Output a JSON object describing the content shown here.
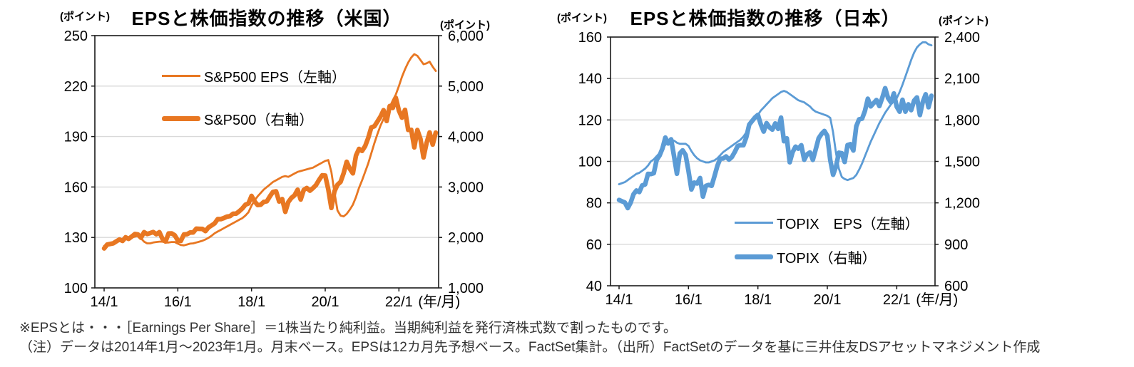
{
  "page": {
    "background": "#FFFFFF",
    "axis_color": "#1A1A1A",
    "grid_color": "#D9D9D9"
  },
  "footnotes": {
    "line1": "※EPSとは・・・［Earnings Per Share］＝1株当たり純利益。当期純利益を発行済株式数で割ったものです。",
    "line2": "（注）データは2014年1月～2023年1月。月末ベース。EPSは12カ月先予想ベース。FactSet集計。（出所）FactSetのデータを基に三井住友DSアセットマネジメント作成"
  },
  "chart_data": [
    {
      "type": "line",
      "title": "EPSと株価指数の推移（米国）",
      "x_axis": {
        "unit": "(年/月)",
        "tick_labels": [
          "14/1",
          "16/1",
          "18/1",
          "20/1",
          "22/1"
        ],
        "tick_month_indices": [
          0,
          24,
          48,
          72,
          96
        ],
        "start": "2014/1",
        "end": "2023/1",
        "interval": "monthly",
        "points": 109
      },
      "left_axis": {
        "unit": "(ポイント)",
        "min": 100,
        "max": 250,
        "step": 30,
        "tick_labels": [
          "100",
          "130",
          "160",
          "190",
          "220",
          "250"
        ]
      },
      "right_axis": {
        "unit": "(ポイント)",
        "min": 1000,
        "max": 6000,
        "step": 1000,
        "tick_labels": [
          "1,000",
          "2,000",
          "3,000",
          "4,000",
          "5,000",
          "6,000"
        ]
      },
      "grid": true,
      "legend_position": "inside-top-left",
      "series": [
        {
          "name": "S&P500 EPS（左軸）",
          "axis": "left",
          "line": "thin",
          "color": "#E87722",
          "values": [
            125,
            125.8,
            126.3,
            126.8,
            127.3,
            127.8,
            128.3,
            128.8,
            129.3,
            130,
            130.5,
            131,
            129.5,
            127.5,
            126.5,
            126.5,
            127,
            127.3,
            127.5,
            127.5,
            127,
            127,
            127.3,
            127.3,
            126.3,
            125.5,
            125.3,
            125.8,
            126.3,
            126.5,
            127,
            127.5,
            128,
            128.8,
            129.8,
            131,
            132.5,
            133.5,
            134.5,
            135.5,
            136.5,
            137.5,
            138.5,
            139.5,
            140.5,
            141.5,
            143,
            145,
            149,
            152,
            154.5,
            156.5,
            158.5,
            160,
            161.5,
            163,
            164,
            165,
            166,
            166.5,
            166,
            167,
            168,
            169,
            169.5,
            170,
            170.5,
            171,
            171.5,
            172.5,
            173.5,
            174.5,
            175.5,
            176,
            169,
            157,
            146,
            143,
            142.5,
            144,
            146.5,
            149.5,
            154,
            159.5,
            164,
            169,
            174,
            180,
            186,
            191.5,
            196.5,
            200.5,
            204,
            207.5,
            211.5,
            215,
            220,
            225.5,
            230,
            234,
            237,
            239,
            238,
            235.5,
            233,
            233.5,
            234.5,
            231.5,
            229
          ]
        },
        {
          "name": "S&P500（右軸）",
          "axis": "right",
          "line": "thick",
          "color": "#E87722",
          "values": [
            1783,
            1859,
            1872,
            1884,
            1924,
            1960,
            1931,
            2003,
            1972,
            2018,
            2068,
            2059,
            1995,
            2105,
            2068,
            2086,
            2107,
            2063,
            2104,
            1972,
            1920,
            2079,
            2080,
            2044,
            1940,
            1932,
            2060,
            2065,
            2097,
            2099,
            2174,
            2171,
            2168,
            2126,
            2199,
            2239,
            2279,
            2364,
            2363,
            2384,
            2412,
            2423,
            2470,
            2472,
            2519,
            2575,
            2648,
            2674,
            2824,
            2714,
            2641,
            2648,
            2705,
            2718,
            2816,
            2902,
            2914,
            2712,
            2760,
            2507,
            2704,
            2784,
            2834,
            2946,
            2752,
            2942,
            2980,
            2926,
            2977,
            3038,
            3141,
            3231,
            3226,
            2954,
            2585,
            2912,
            3044,
            3100,
            3271,
            3500,
            3363,
            3270,
            3622,
            3756,
            3714,
            3811,
            3973,
            4181,
            4204,
            4298,
            4395,
            4523,
            4308,
            4605,
            4567,
            4766,
            4516,
            4374,
            4530,
            4132,
            4132,
            3785,
            4130,
            3955,
            3586,
            3872,
            4080,
            3840,
            4077
          ]
        }
      ]
    },
    {
      "type": "line",
      "title": "EPSと株価指数の推移（日本）",
      "x_axis": {
        "unit": "(年/月)",
        "tick_labels": [
          "14/1",
          "16/1",
          "18/1",
          "20/1",
          "22/1"
        ],
        "tick_month_indices": [
          0,
          24,
          48,
          72,
          96
        ],
        "start": "2014/1",
        "end": "2023/1",
        "interval": "monthly",
        "points": 109
      },
      "left_axis": {
        "unit": "(ポイント)",
        "min": 40,
        "max": 160,
        "step": 20,
        "tick_labels": [
          "40",
          "60",
          "80",
          "100",
          "120",
          "140",
          "160"
        ]
      },
      "right_axis": {
        "unit": "(ポイント)",
        "min": 600,
        "max": 2400,
        "step": 300,
        "tick_labels": [
          "600",
          "900",
          "1,200",
          "1,500",
          "1,800",
          "2,100",
          "2,400"
        ]
      },
      "grid": true,
      "legend_position": "inside-bottom-right",
      "series": [
        {
          "name": "TOPIX　EPS（左軸）",
          "axis": "left",
          "line": "thin",
          "color": "#5B9BD5",
          "values": [
            89,
            89.5,
            90,
            91,
            92,
            93,
            94,
            94.5,
            95.5,
            96.5,
            98,
            100,
            101,
            102.5,
            104,
            106,
            108,
            109.5,
            110.5,
            110,
            109,
            108.5,
            108.5,
            108.5,
            107.5,
            105,
            103,
            101.5,
            100.5,
            100,
            99.5,
            99.5,
            100,
            100.5,
            101.5,
            103,
            104.5,
            105.5,
            106.5,
            107.5,
            108.5,
            109.5,
            110.5,
            112,
            114,
            116.5,
            119,
            121,
            122.5,
            124.5,
            126,
            127.5,
            129,
            130.5,
            131.5,
            132.5,
            133.5,
            134,
            133.5,
            132.5,
            131.5,
            130.5,
            129.5,
            129,
            128.5,
            127.5,
            126.5,
            125,
            124,
            123.5,
            123,
            122.5,
            122,
            121,
            114,
            104,
            96.5,
            92.5,
            91.5,
            91,
            91.5,
            92,
            93.5,
            96,
            99,
            102.5,
            106,
            109.5,
            112.5,
            115.5,
            118.5,
            121,
            123.5,
            125.5,
            127.5,
            129,
            130.5,
            133.5,
            137,
            141,
            145,
            149,
            152.5,
            155,
            156.5,
            157.5,
            157.5,
            156.5,
            156
          ]
        },
        {
          "name": "TOPIX（右軸）",
          "axis": "right",
          "line": "thick",
          "color": "#5B9BD5",
          "values": [
            1221,
            1211,
            1203,
            1162,
            1201,
            1263,
            1289,
            1278,
            1326,
            1333,
            1410,
            1408,
            1415,
            1511,
            1543,
            1593,
            1673,
            1630,
            1660,
            1537,
            1411,
            1558,
            1580,
            1547,
            1432,
            1297,
            1347,
            1340,
            1380,
            1245,
            1323,
            1330,
            1323,
            1393,
            1469,
            1519,
            1521,
            1536,
            1513,
            1532,
            1568,
            1611,
            1618,
            1617,
            1675,
            1766,
            1793,
            1818,
            1837,
            1768,
            1716,
            1777,
            1747,
            1730,
            1775,
            1735,
            1817,
            1646,
            1667,
            1494,
            1567,
            1607,
            1592,
            1617,
            1512,
            1551,
            1565,
            1511,
            1588,
            1667,
            1699,
            1721,
            1685,
            1510,
            1403,
            1464,
            1563,
            1559,
            1496,
            1618,
            1625,
            1579,
            1755,
            1805,
            1809,
            1864,
            1954,
            1898,
            1922,
            1944,
            1901,
            1961,
            2030,
            1958,
            1928,
            1992,
            1896,
            1860,
            1946,
            1860,
            1913,
            1871,
            1940,
            1963,
            1836,
            1929,
            1986,
            1892,
            1975
          ]
        }
      ]
    }
  ]
}
